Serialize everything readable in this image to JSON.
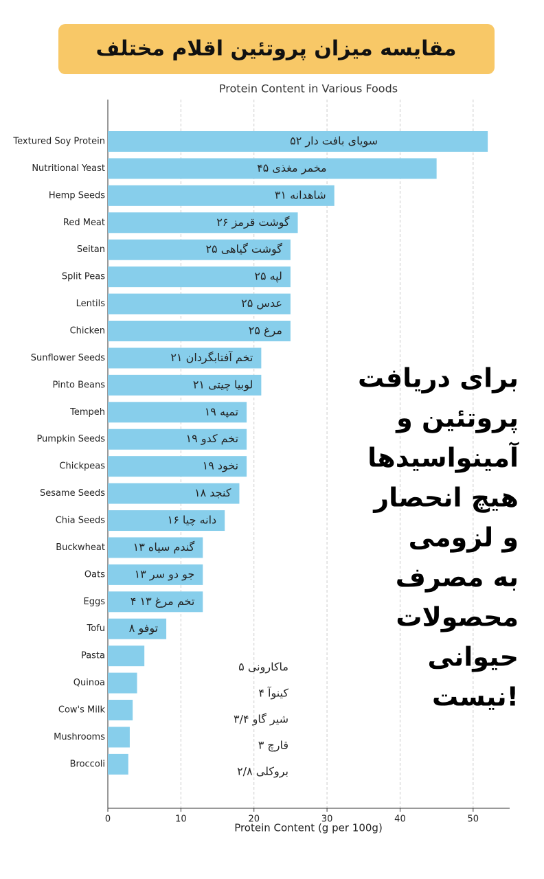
{
  "chart_data": {
    "type": "barh",
    "headline": "مقایسه میزان پروتئین اقلام مختلف",
    "title": "Protein Content in Various Foods",
    "xlabel": "Protein Content (g per 100g)",
    "categories": [
      "Textured Soy Protein",
      "Nutritional Yeast",
      "Hemp Seeds",
      "Red Meat",
      "Seitan",
      "Split Peas",
      "Lentils",
      "Chicken",
      "Sunflower Seeds",
      "Pinto Beans",
      "Tempeh",
      "Pumpkin Seeds",
      "Chickpeas",
      "Sesame Seeds",
      "Chia Seeds",
      "Buckwheat",
      "Oats",
      "Eggs",
      "Tofu",
      "Pasta",
      "Quinoa",
      "Cow's Milk",
      "Mushrooms",
      "Broccoli"
    ],
    "values": [
      52,
      45,
      31,
      26,
      25,
      25,
      25,
      25,
      21,
      21,
      19,
      19,
      19,
      18,
      16,
      13,
      13,
      13,
      8,
      5,
      4,
      3.4,
      3,
      2.8
    ],
    "value_labels": [
      "سویای بافت دار ۵۲",
      "مخمر مغذی ۴۵",
      "شاهدانه ۳۱",
      "گوشت قرمز ۲۶",
      "گوشت گیاهی ۲۵",
      "لپه ۲۵",
      "عدس ۲۵",
      "مرغ ۲۵",
      "تخم آفتابگردان ۲۱",
      "لوبیا چیتی ۲۱",
      "تمپه ۱۹",
      "تخم کدو ۱۹",
      "نخود ۱۹",
      "کنجد ۱۸",
      "دانه چیا ۱۶",
      "گندم سیاه ۱۳",
      "جو دو سر ۱۳",
      "۴ تخم مرغ ۱۳",
      "توفو ۸",
      "ماکارونی ۵",
      "کینوآ ۴",
      "شیر گاو ۳/۴",
      "قارچ ۳",
      "بروکلی ۲/۸"
    ],
    "color": "#87ceeb",
    "xlim": [
      0,
      55
    ],
    "xticks": [
      0,
      10,
      20,
      30,
      40,
      50
    ],
    "grid": true,
    "annotation": [
      "برای دریافت",
      "پروتئین و",
      "آمینواسیدها",
      "هیچ انحصار",
      "و لزومی",
      "به مصرف",
      "محصولات",
      "حیوانی",
      "نیست!"
    ]
  }
}
